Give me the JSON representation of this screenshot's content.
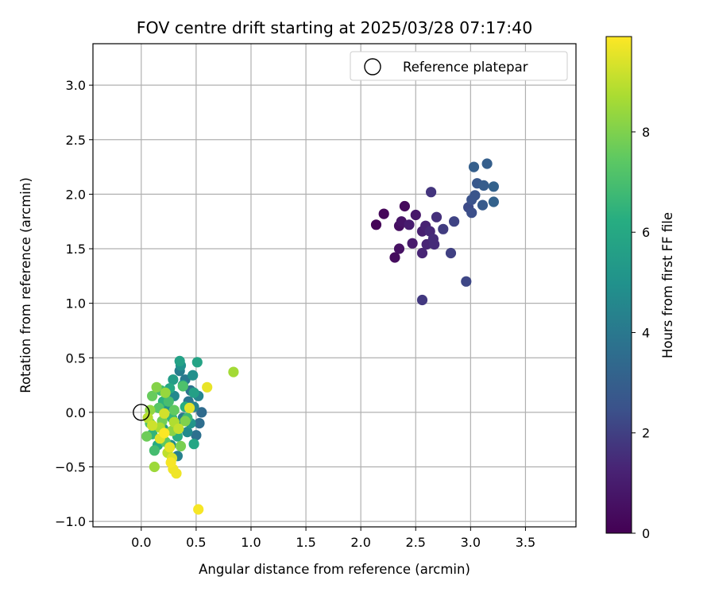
{
  "chart_data": {
    "type": "scatter",
    "title": "FOV centre drift starting at 2025/03/28 07:17:40",
    "xlabel": "Angular distance from reference (arcmin)",
    "ylabel": "Rotation from reference (arcmin)",
    "xlim": [
      -0.44,
      3.96
    ],
    "ylim": [
      -1.05,
      3.38
    ],
    "xticks": [
      0.0,
      0.5,
      1.0,
      1.5,
      2.0,
      2.5,
      3.0,
      3.5
    ],
    "yticks": [
      -1.0,
      -0.5,
      0.0,
      0.5,
      1.0,
      1.5,
      2.0,
      2.5,
      3.0
    ],
    "xtick_labels": [
      "0.0",
      "0.5",
      "1.0",
      "1.5",
      "2.0",
      "2.5",
      "3.0",
      "3.5"
    ],
    "ytick_labels": [
      "−1.0",
      "−0.5",
      "0.0",
      "0.5",
      "1.0",
      "1.5",
      "2.0",
      "2.5",
      "3.0"
    ],
    "grid": true,
    "legend": {
      "position": "top-right",
      "entries": [
        "Reference platepar"
      ]
    },
    "reference_point": {
      "x": 0.0,
      "y": 0.0,
      "label": "Reference platepar"
    },
    "colorbar": {
      "label": "Hours from first FF file",
      "min": 0,
      "max": 9.9,
      "ticks": [
        0,
        2,
        4,
        6,
        8
      ],
      "tick_labels": [
        "0",
        "2",
        "4",
        "6",
        "8"
      ],
      "colormap": "viridis"
    },
    "points": [
      {
        "x": 2.14,
        "y": 1.72,
        "c": 0.1
      },
      {
        "x": 2.21,
        "y": 1.82,
        "c": 0.2
      },
      {
        "x": 2.4,
        "y": 1.89,
        "c": 0.3
      },
      {
        "x": 2.31,
        "y": 1.42,
        "c": 0.4
      },
      {
        "x": 2.35,
        "y": 1.71,
        "c": 0.5
      },
      {
        "x": 2.35,
        "y": 1.5,
        "c": 0.6
      },
      {
        "x": 2.37,
        "y": 1.75,
        "c": 0.7
      },
      {
        "x": 2.5,
        "y": 1.81,
        "c": 0.8
      },
      {
        "x": 2.47,
        "y": 1.55,
        "c": 0.9
      },
      {
        "x": 2.44,
        "y": 1.72,
        "c": 1.0
      },
      {
        "x": 2.56,
        "y": 1.66,
        "c": 1.1
      },
      {
        "x": 2.59,
        "y": 1.71,
        "c": 1.2
      },
      {
        "x": 2.6,
        "y": 1.54,
        "c": 1.3
      },
      {
        "x": 2.56,
        "y": 1.46,
        "c": 1.3
      },
      {
        "x": 2.63,
        "y": 1.66,
        "c": 1.4
      },
      {
        "x": 2.66,
        "y": 1.59,
        "c": 1.5
      },
      {
        "x": 2.67,
        "y": 1.54,
        "c": 1.5
      },
      {
        "x": 2.69,
        "y": 1.79,
        "c": 1.6
      },
      {
        "x": 2.64,
        "y": 2.02,
        "c": 1.7
      },
      {
        "x": 2.56,
        "y": 1.03,
        "c": 1.8
      },
      {
        "x": 2.75,
        "y": 1.68,
        "c": 1.9
      },
      {
        "x": 2.82,
        "y": 1.46,
        "c": 2.0
      },
      {
        "x": 2.85,
        "y": 1.75,
        "c": 2.1
      },
      {
        "x": 2.96,
        "y": 1.2,
        "c": 2.2
      },
      {
        "x": 2.98,
        "y": 1.88,
        "c": 2.3
      },
      {
        "x": 3.01,
        "y": 1.83,
        "c": 2.4
      },
      {
        "x": 3.01,
        "y": 1.95,
        "c": 2.5
      },
      {
        "x": 3.04,
        "y": 1.99,
        "c": 2.6
      },
      {
        "x": 3.06,
        "y": 2.1,
        "c": 2.7
      },
      {
        "x": 3.11,
        "y": 1.9,
        "c": 2.8
      },
      {
        "x": 3.12,
        "y": 2.08,
        "c": 2.9
      },
      {
        "x": 3.15,
        "y": 2.28,
        "c": 3.0
      },
      {
        "x": 3.03,
        "y": 2.25,
        "c": 3.0
      },
      {
        "x": 3.21,
        "y": 1.93,
        "c": 3.1
      },
      {
        "x": 3.21,
        "y": 2.07,
        "c": 3.1
      },
      {
        "x": 0.55,
        "y": 0.0,
        "c": 3.5
      },
      {
        "x": 0.53,
        "y": -0.1,
        "c": 3.6
      },
      {
        "x": 0.5,
        "y": -0.21,
        "c": 3.7
      },
      {
        "x": 0.45,
        "y": 0.2,
        "c": 3.8
      },
      {
        "x": 0.43,
        "y": 0.1,
        "c": 3.9
      },
      {
        "x": 0.4,
        "y": 0.3,
        "c": 4.0
      },
      {
        "x": 0.38,
        "y": -0.05,
        "c": 4.1
      },
      {
        "x": 0.35,
        "y": 0.38,
        "c": 4.2
      },
      {
        "x": 0.33,
        "y": -0.4,
        "c": 4.3
      },
      {
        "x": 0.48,
        "y": 0.05,
        "c": 4.4
      },
      {
        "x": 0.52,
        "y": 0.15,
        "c": 4.5
      },
      {
        "x": 0.3,
        "y": 0.15,
        "c": 4.6
      },
      {
        "x": 0.42,
        "y": -0.18,
        "c": 4.7
      },
      {
        "x": 0.27,
        "y": -0.3,
        "c": 4.8
      },
      {
        "x": 0.47,
        "y": 0.34,
        "c": 4.9
      },
      {
        "x": 0.36,
        "y": 0.43,
        "c": 5.0
      },
      {
        "x": 0.24,
        "y": 0.05,
        "c": 5.0
      },
      {
        "x": 0.32,
        "y": -0.1,
        "c": 5.1
      },
      {
        "x": 0.45,
        "y": -0.1,
        "c": 5.2
      },
      {
        "x": 0.38,
        "y": 0.25,
        "c": 5.3
      },
      {
        "x": 0.2,
        "y": -0.15,
        "c": 5.4
      },
      {
        "x": 0.29,
        "y": 0.3,
        "c": 5.5
      },
      {
        "x": 0.48,
        "y": 0.18,
        "c": 5.6
      },
      {
        "x": 0.35,
        "y": 0.47,
        "c": 5.7
      },
      {
        "x": 0.51,
        "y": 0.46,
        "c": 5.8
      },
      {
        "x": 0.48,
        "y": -0.29,
        "c": 5.9
      },
      {
        "x": 0.26,
        "y": 0.22,
        "c": 6.0
      },
      {
        "x": 0.15,
        "y": -0.3,
        "c": 6.1
      },
      {
        "x": 0.4,
        "y": 0.05,
        "c": 6.2
      },
      {
        "x": 0.33,
        "y": -0.22,
        "c": 6.3
      },
      {
        "x": 0.2,
        "y": 0.1,
        "c": 6.4
      },
      {
        "x": 0.1,
        "y": -0.2,
        "c": 6.5
      },
      {
        "x": 0.28,
        "y": -0.05,
        "c": 6.6
      },
      {
        "x": 0.42,
        "y": -0.05,
        "c": 6.7
      },
      {
        "x": 0.18,
        "y": 0.2,
        "c": 6.8
      },
      {
        "x": 0.12,
        "y": -0.35,
        "c": 6.9
      },
      {
        "x": 0.25,
        "y": 0.1,
        "c": 7.0
      },
      {
        "x": 0.38,
        "y": 0.24,
        "c": 7.1
      },
      {
        "x": 0.08,
        "y": -0.1,
        "c": 7.2
      },
      {
        "x": 0.16,
        "y": 0.04,
        "c": 7.3
      },
      {
        "x": 0.22,
        "y": -0.27,
        "c": 7.4
      },
      {
        "x": 0.3,
        "y": 0.02,
        "c": 7.5
      },
      {
        "x": 0.1,
        "y": 0.15,
        "c": 7.6
      },
      {
        "x": 0.05,
        "y": -0.22,
        "c": 7.7
      },
      {
        "x": 0.19,
        "y": -0.08,
        "c": 7.8
      },
      {
        "x": 0.36,
        "y": -0.31,
        "c": 7.9
      },
      {
        "x": 0.4,
        "y": -0.08,
        "c": 8.0
      },
      {
        "x": 0.14,
        "y": 0.23,
        "c": 8.1
      },
      {
        "x": 0.28,
        "y": -0.17,
        "c": 8.2
      },
      {
        "x": 0.08,
        "y": 0.02,
        "c": 8.3
      },
      {
        "x": 0.22,
        "y": 0.18,
        "c": 8.4
      },
      {
        "x": 0.12,
        "y": -0.5,
        "c": 8.5
      },
      {
        "x": 0.84,
        "y": 0.37,
        "c": 8.6
      },
      {
        "x": 0.17,
        "y": -0.14,
        "c": 8.7
      },
      {
        "x": 0.3,
        "y": -0.09,
        "c": 8.8
      },
      {
        "x": 0.06,
        "y": -0.05,
        "c": 8.9
      },
      {
        "x": 0.24,
        "y": -0.37,
        "c": 9.0
      },
      {
        "x": 0.34,
        "y": -0.15,
        "c": 9.1
      },
      {
        "x": 0.1,
        "y": -0.12,
        "c": 9.2
      },
      {
        "x": 0.21,
        "y": -0.01,
        "c": 9.3
      },
      {
        "x": 0.28,
        "y": -0.42,
        "c": 9.4
      },
      {
        "x": 0.17,
        "y": -0.24,
        "c": 9.5
      },
      {
        "x": 0.44,
        "y": 0.04,
        "c": 9.5
      },
      {
        "x": 0.6,
        "y": 0.23,
        "c": 9.6
      },
      {
        "x": 0.26,
        "y": -0.32,
        "c": 9.6
      },
      {
        "x": 0.29,
        "y": -0.52,
        "c": 9.7
      },
      {
        "x": 0.32,
        "y": -0.56,
        "c": 9.7
      },
      {
        "x": 0.27,
        "y": -0.46,
        "c": 9.8
      },
      {
        "x": 0.52,
        "y": -0.89,
        "c": 9.8
      },
      {
        "x": 0.21,
        "y": -0.19,
        "c": 9.9
      }
    ]
  }
}
